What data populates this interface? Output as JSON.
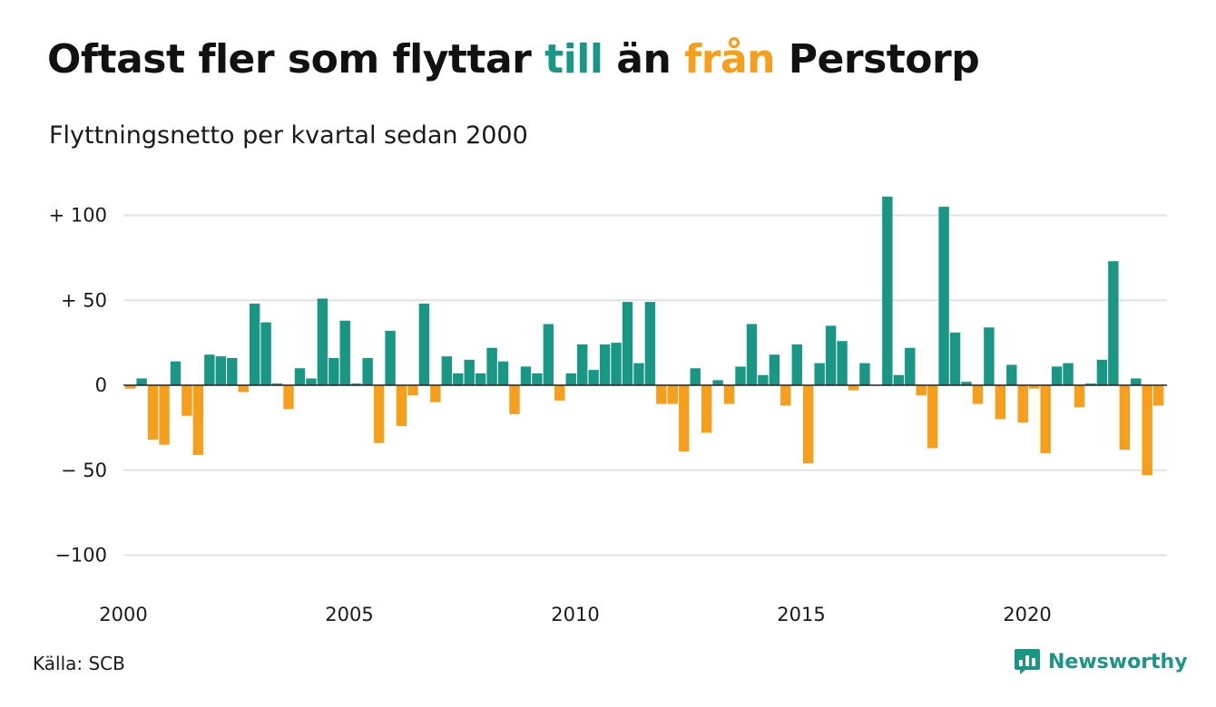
{
  "title": {
    "part1": "Oftast fler som flyttar ",
    "pos_word": "till",
    "part2": " än ",
    "neg_word": "från",
    "part3": " Perstorp"
  },
  "subtitle": "Flyttningsnetto per kvartal sedan 2000",
  "source": "Källa: SCB",
  "brand": {
    "name": "Newsworthy",
    "icon": "bar-chart-chat-icon"
  },
  "colors": {
    "positive": "#1a9685",
    "negative": "#f59f1c",
    "grid": "#e2e2e2",
    "zero_line": "#222222",
    "text": "#111111"
  },
  "chart_data": {
    "type": "bar",
    "title": "Oftast fler som flyttar till än från Perstorp",
    "subtitle": "Flyttningsnetto per kvartal sedan 2000",
    "x_start": 2000,
    "periods_per_year": 4,
    "xticks": [
      2000,
      2005,
      2010,
      2015,
      2020
    ],
    "xtick_labels": [
      "2000",
      "2005",
      "2010",
      "2015",
      "2020"
    ],
    "yticks": [
      100,
      50,
      0,
      -50,
      -100
    ],
    "ytick_labels": [
      "+ 100",
      "+  50",
      "0",
      "− 50",
      "−100"
    ],
    "ylim": [
      -110,
      113
    ],
    "grid": true,
    "values": [
      -2,
      4,
      -32,
      -35,
      14,
      -18,
      -41,
      18,
      17,
      16,
      -4,
      48,
      37,
      1,
      -14,
      10,
      4,
      51,
      16,
      38,
      1,
      16,
      -34,
      32,
      -24,
      -6,
      48,
      -10,
      17,
      7,
      15,
      7,
      22,
      14,
      -17,
      11,
      7,
      36,
      -9,
      7,
      24,
      9,
      24,
      25,
      49,
      13,
      49,
      -11,
      -11,
      -39,
      10,
      -28,
      3,
      -11,
      11,
      36,
      6,
      18,
      -12,
      24,
      -46,
      13,
      35,
      26,
      -3,
      13,
      0,
      111,
      6,
      22,
      -6,
      -37,
      105,
      31,
      2,
      -11,
      34,
      -20,
      12,
      -22,
      -2,
      -40,
      11,
      13,
      -13,
      1,
      15,
      73,
      -38,
      4,
      -53,
      -12
    ]
  }
}
